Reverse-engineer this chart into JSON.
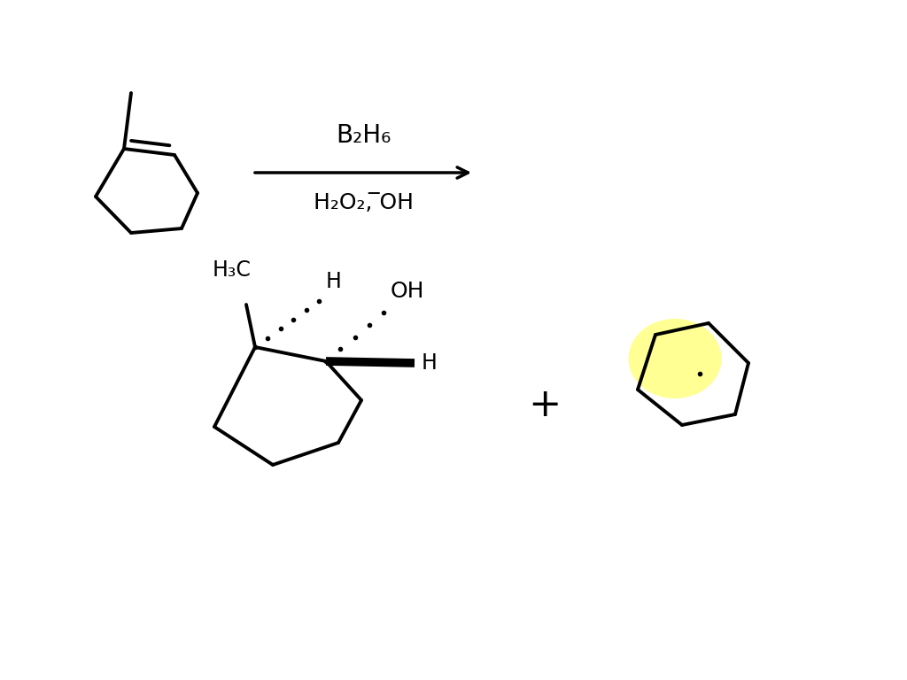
{
  "background_color": "#ffffff",
  "line_color": "#000000",
  "line_width": 2.8,
  "highlight_color": "#ffff88",
  "reagent_top": "B₂H₆",
  "reagent_bottom": "H₂O₂, ̅OH",
  "label_H3C": "H₃C",
  "label_H_dashed_top": "H",
  "label_OH": "OH",
  "label_H_bold": "H",
  "label_plus": "+",
  "font_size_reagent": 20,
  "font_size_label": 17,
  "font_size_plus": 32,
  "fig_width": 10.24,
  "fig_height": 7.68,
  "dpi": 100
}
